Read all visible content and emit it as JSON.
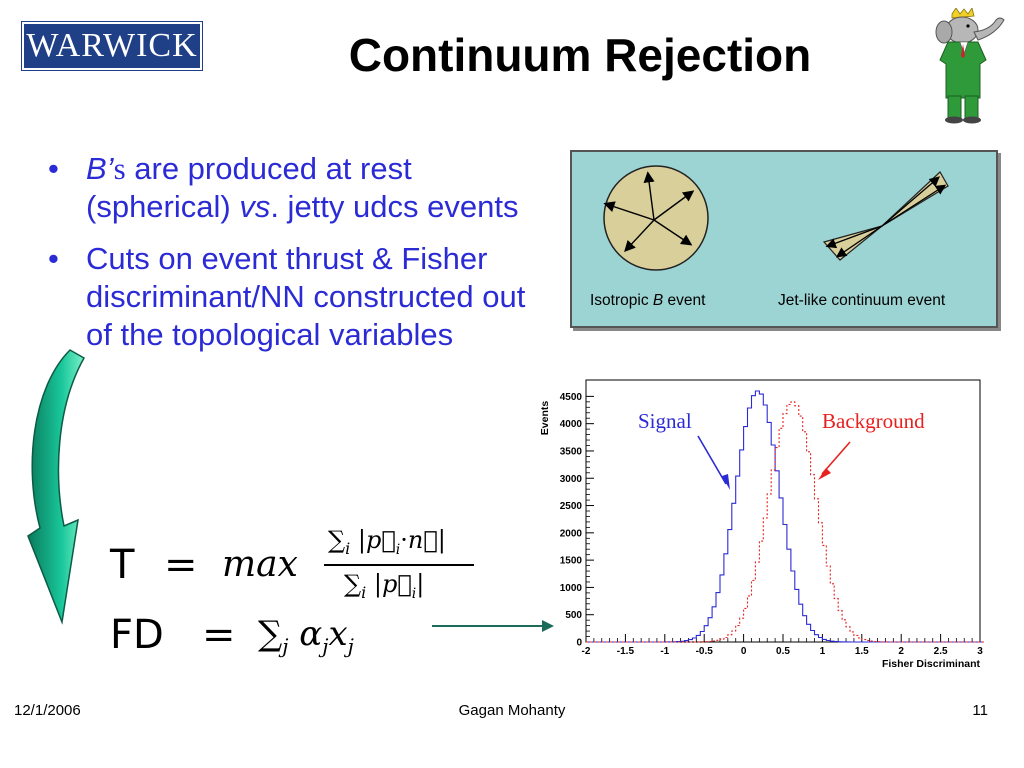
{
  "slide": {
    "logo_text": "WARWICK",
    "title": "Continuum Rejection",
    "bullets": [
      {
        "b": "B’",
        "s": "s",
        "rest": " are produced at rest (spherical) ",
        "vs": "vs",
        "tail": ". jetty udcs events"
      },
      {
        "text": "Cuts on event thrust & Fisher discriminant/NN constructed out of the topological variables"
      }
    ],
    "diagram": {
      "left_label_pre": "Isotropic ",
      "left_label_b": "B",
      "left_label_post": " event",
      "right_label": "Jet-like continuum event"
    },
    "formulas": {
      "t_lhs": "T",
      "fd_lhs": "FD",
      "max": "max"
    },
    "footer": {
      "date": "12/1/2006",
      "author": "Gagan Mohanty",
      "page": "11"
    }
  },
  "colors": {
    "bullet_text": "#2b2bd6",
    "diagram_bg": "#9cd3d3",
    "sphere": "#d8cf9a",
    "signal": "#2b2bd6",
    "background": "#e8201f",
    "arrow_green": "#1a6b5a"
  },
  "chart_data": {
    "type": "line",
    "xlabel": "Fisher Discriminant",
    "ylabel": "Events",
    "xlim": [
      -2,
      3
    ],
    "ylim": [
      0,
      4800
    ],
    "xticks": [
      -2,
      -1.5,
      -1,
      -0.5,
      0,
      0.5,
      1,
      1.5,
      2,
      2.5,
      3
    ],
    "yticks": [
      0,
      500,
      1000,
      1500,
      2000,
      2500,
      3000,
      3500,
      4000,
      4500
    ],
    "annotations": [
      "Signal",
      "Background"
    ],
    "series": [
      {
        "name": "Signal",
        "style": "solid",
        "mean": 0.18,
        "sigma": 0.28,
        "peak": 4600
      },
      {
        "name": "Background",
        "style": "dotted",
        "mean": 0.62,
        "sigma": 0.3,
        "peak": 4400
      }
    ]
  }
}
